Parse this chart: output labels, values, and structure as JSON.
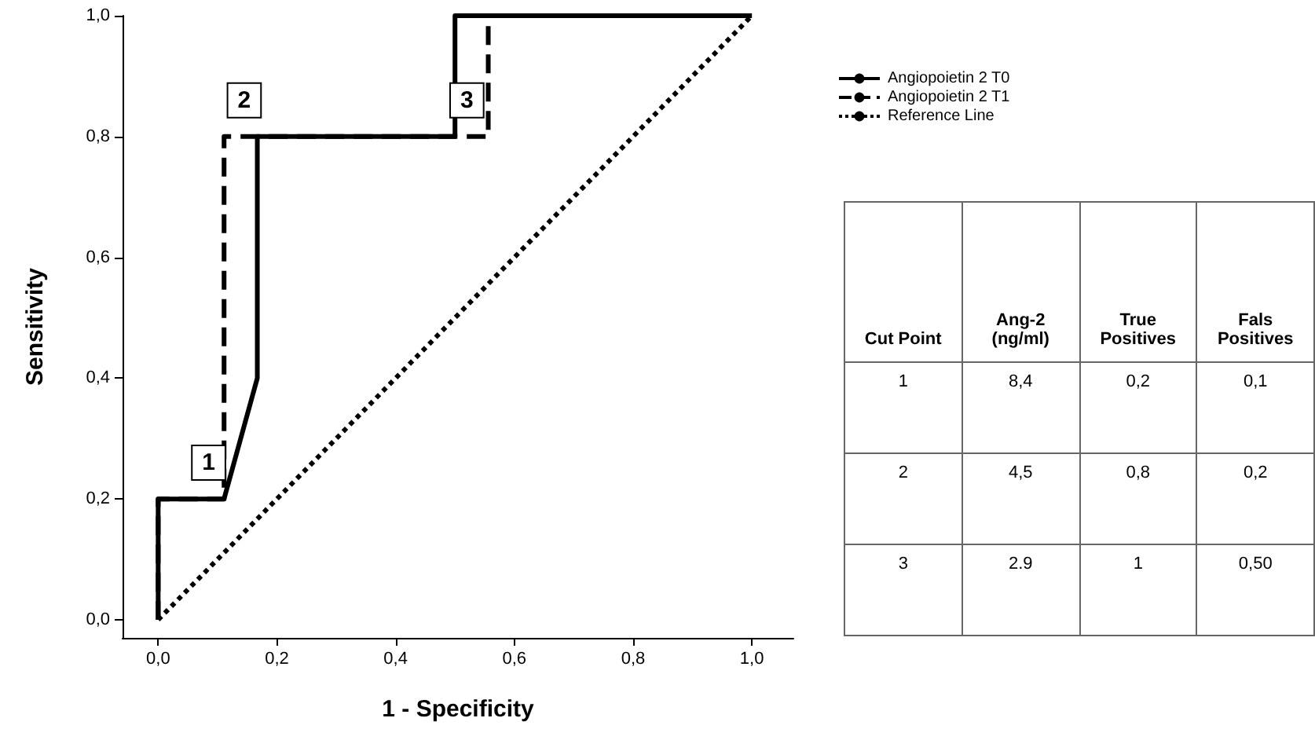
{
  "chart_data": [
    {
      "type": "line",
      "xlabel": "1 - Specificity",
      "ylabel": "Sensitivity",
      "xlim": [
        -0.06,
        1.07
      ],
      "ylim": [
        -0.03,
        1.0
      ],
      "xticks": [
        {
          "value": 0,
          "label": "0,0"
        },
        {
          "value": 0.2,
          "label": "0,2"
        },
        {
          "value": 0.4,
          "label": "0,4"
        },
        {
          "value": 0.6,
          "label": "0,6"
        },
        {
          "value": 0.8,
          "label": "0,8"
        },
        {
          "value": 1,
          "label": "1,0"
        }
      ],
      "yticks": [
        {
          "value": 0,
          "label": "0,0"
        },
        {
          "value": 0.2,
          "label": "0,2"
        },
        {
          "value": 0.4,
          "label": "0,4"
        },
        {
          "value": 0.6,
          "label": "0,6"
        },
        {
          "value": 0.8,
          "label": "0,8"
        },
        {
          "value": 1,
          "label": "1,0"
        }
      ],
      "grid": false,
      "legend": "top right",
      "marker": "none",
      "series": [
        {
          "name": "Angiopoietin 2 T0",
          "color": "#000000",
          "line_style": "solid",
          "x": [
            0,
            0,
            0.111,
            0.167,
            0.167,
            0.5,
            0.5,
            1
          ],
          "values": [
            0,
            0.2,
            0.2,
            0.4,
            0.8,
            0.8,
            1,
            1
          ]
        },
        {
          "name": "Angiopoietin 2 T1",
          "color": "#000000",
          "line_style": "dashed",
          "x": [
            0,
            0,
            0.111,
            0.111,
            0.556,
            0.556,
            1
          ],
          "values": [
            0,
            0.2,
            0.2,
            0.8,
            0.8,
            1,
            1
          ]
        },
        {
          "name": "Reference Line",
          "color": "#000000",
          "line_style": "dotted",
          "x": [
            0,
            1
          ],
          "values": [
            0,
            1
          ]
        }
      ],
      "annotations": [
        {
          "text": "1",
          "x": 0.085,
          "y": 0.26
        },
        {
          "text": "2",
          "x": 0.145,
          "y": 0.86
        },
        {
          "text": "3",
          "x": 0.52,
          "y": 0.86
        }
      ]
    },
    {
      "type": "other",
      "categories": [
        "Cut Point",
        "Ang-2\n(ng/ml)",
        "True\nPositives",
        "Fals\nPositives"
      ],
      "cell_labels": [
        [
          "1",
          "8,4",
          "0,2",
          "0,1"
        ],
        [
          "2",
          "4,5",
          "0,8",
          "0,2"
        ],
        [
          "3",
          "2.9",
          "1",
          "0,50"
        ]
      ]
    }
  ]
}
